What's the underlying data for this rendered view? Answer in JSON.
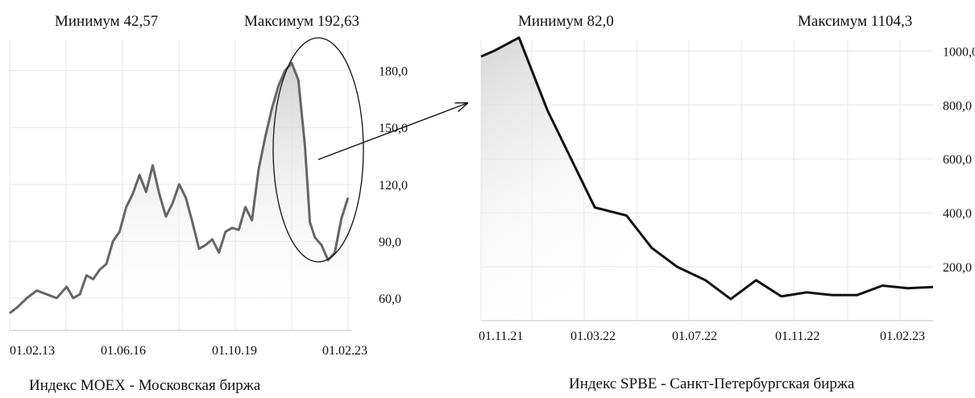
{
  "chart_data": [
    {
      "type": "area",
      "min_label": "Минимум 42,57",
      "max_label": "Максимум 192,63",
      "caption": "Индекс MOEX - Московская биржа",
      "y_ticks": [
        "180,0",
        "150,0",
        "120,0",
        "90,0",
        "60,0"
      ],
      "y_tick_values": [
        180,
        150,
        120,
        90,
        60
      ],
      "ylim": [
        43,
        196
      ],
      "x_ticks": [
        "01.02.13",
        "01.06.16",
        "01.10.19",
        "01.02.23"
      ],
      "x": [
        2013.08,
        2013.3,
        2013.6,
        2013.9,
        2014.2,
        2014.5,
        2014.8,
        2015.0,
        2015.2,
        2015.4,
        2015.6,
        2015.8,
        2016.0,
        2016.2,
        2016.4,
        2016.6,
        2016.8,
        2017.0,
        2017.2,
        2017.4,
        2017.6,
        2017.8,
        2018.0,
        2018.2,
        2018.4,
        2018.6,
        2018.8,
        2019.0,
        2019.2,
        2019.4,
        2019.6,
        2019.8,
        2020.0,
        2020.2,
        2020.4,
        2020.6,
        2020.8,
        2021.0,
        2021.2,
        2021.4,
        2021.6,
        2021.8,
        2022.0,
        2022.15,
        2022.3,
        2022.5,
        2022.7,
        2022.9,
        2023.1,
        2023.3
      ],
      "values": [
        52,
        55,
        60,
        64,
        62,
        60,
        66,
        60,
        62,
        72,
        70,
        75,
        78,
        90,
        95,
        108,
        115,
        125,
        116,
        130,
        115,
        103,
        110,
        120,
        113,
        100,
        86,
        88,
        91,
        84,
        95,
        97,
        96,
        108,
        101,
        128,
        145,
        160,
        172,
        180,
        184,
        175,
        140,
        100,
        92,
        88,
        80,
        84,
        102,
        113
      ]
    },
    {
      "type": "area",
      "min_label": "Минимум 82,0",
      "max_label": "Максимум 1104,3",
      "caption": "Индекс SPBE - Санкт-Петербургская биржа",
      "y_ticks": [
        "1000,0",
        "800,0",
        "600,0",
        "400,0",
        "200,0"
      ],
      "y_tick_values": [
        1000,
        800,
        600,
        400,
        200
      ],
      "ylim": [
        0,
        1040
      ],
      "x_ticks": [
        "01.11.21",
        "01.03.22",
        "01.07.22",
        "01.11.22",
        "01.02.23"
      ],
      "x": [
        2021.84,
        2021.88,
        2021.96,
        2022.05,
        2022.2,
        2022.3,
        2022.38,
        2022.46,
        2022.55,
        2022.63,
        2022.71,
        2022.79,
        2022.87,
        2022.95,
        2023.03,
        2023.11,
        2023.19,
        2023.27
      ],
      "values": [
        980,
        1000,
        1050,
        780,
        420,
        390,
        270,
        200,
        150,
        80,
        150,
        90,
        105,
        95,
        95,
        130,
        120,
        125
      ]
    }
  ]
}
